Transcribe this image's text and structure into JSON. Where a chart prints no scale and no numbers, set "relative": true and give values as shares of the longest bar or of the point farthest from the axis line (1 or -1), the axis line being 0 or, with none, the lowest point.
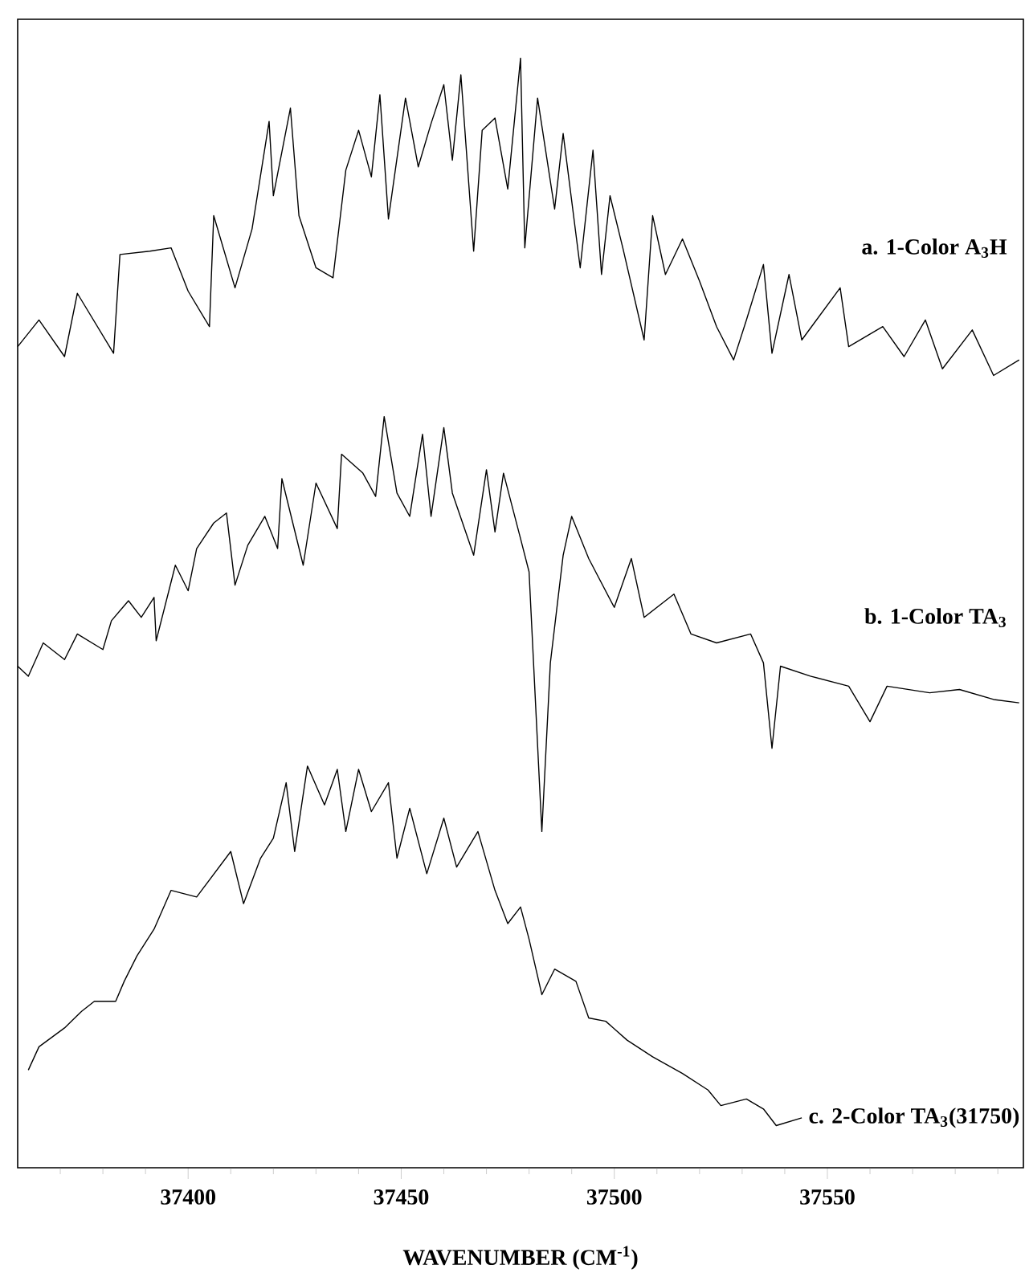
{
  "chart_data": {
    "type": "line",
    "relative": true,
    "xlabel": "WAVENUMBER (CM$^{-1}$)",
    "xlim": [
      37360,
      37596
    ],
    "tick_labels": "x",
    "xticks": [
      {
        "value": 37370,
        "label": null
      },
      {
        "value": 37380,
        "label": null
      },
      {
        "value": 37390,
        "label": null
      },
      37400,
      {
        "value": 37410,
        "label": null
      },
      {
        "value": 37420,
        "label": null
      },
      {
        "value": 37430,
        "label": null
      },
      {
        "value": 37440,
        "label": null
      },
      37450,
      {
        "value": 37460,
        "label": null
      },
      {
        "value": 37470,
        "label": null
      },
      {
        "value": 37480,
        "label": null
      },
      {
        "value": 37490,
        "label": null
      },
      37500,
      {
        "value": 37510,
        "label": null
      },
      {
        "value": 37520,
        "label": null
      },
      {
        "value": 37530,
        "label": null
      },
      {
        "value": 37540,
        "label": null
      },
      37550,
      {
        "value": 37560,
        "label": null
      },
      {
        "value": 37570,
        "label": null
      },
      {
        "value": 37580,
        "label": null
      },
      {
        "value": 37590,
        "label": null
      }
    ],
    "series": [
      {
        "name": "a.  1-Color  A$_{3}$H",
        "color": "#000000",
        "x": [
          37360,
          37365,
          37371,
          37374,
          37382.5,
          37384,
          37391,
          37396,
          37400,
          37405,
          37406,
          37411,
          37415,
          37419,
          37420,
          37424,
          37426,
          37430,
          37434,
          37437,
          37440,
          37443,
          37445,
          37447,
          37451,
          37454,
          37457,
          37460,
          37462,
          37464,
          37467,
          37469,
          37472,
          37475,
          37478,
          37479,
          37482,
          37486,
          37488,
          37492,
          37495,
          37497,
          37499,
          37502,
          37507,
          37509,
          37512,
          37516,
          37520,
          37524,
          37528,
          37531,
          37535,
          37537,
          37541,
          37544,
          37553,
          37555,
          37563,
          37568,
          37573,
          37577,
          37584,
          37589,
          37595
        ],
        "values": [
          0.74,
          0.764,
          0.731,
          0.788,
          0.734,
          0.823,
          0.826,
          0.829,
          0.79,
          0.758,
          0.858,
          0.793,
          0.846,
          0.943,
          0.876,
          0.955,
          0.858,
          0.811,
          0.802,
          0.899,
          0.935,
          0.893,
          0.967,
          0.855,
          0.964,
          0.902,
          0.941,
          0.976,
          0.908,
          0.985,
          0.826,
          0.935,
          0.946,
          0.882,
          1.0,
          0.829,
          0.964,
          0.864,
          0.932,
          0.811,
          0.917,
          0.805,
          0.876,
          0.829,
          0.746,
          0.858,
          0.805,
          0.837,
          0.799,
          0.758,
          0.728,
          0.764,
          0.814,
          0.734,
          0.805,
          0.746,
          0.793,
          0.74,
          0.758,
          0.731,
          0.764,
          0.72,
          0.755,
          0.714,
          0.728
        ]
      },
      {
        "name": "b.  1-Color  TA$_{3}$",
        "color": "#000000",
        "x": [
          37360,
          37362.5,
          37366,
          37371,
          37374,
          37380,
          37382,
          37386,
          37389,
          37392,
          37392.5,
          37397,
          37400,
          37402,
          37406,
          37409,
          37411,
          37414,
          37418,
          37421,
          37422,
          37427,
          37430,
          37435,
          37436,
          37441,
          37444,
          37446,
          37449,
          37452,
          37455,
          37457,
          37460,
          37462,
          37467,
          37470,
          37472,
          37474,
          37478,
          37480,
          37483,
          37485,
          37488,
          37490,
          37494,
          37500,
          37504,
          37507,
          37514,
          37518,
          37524,
          37532,
          37535,
          37537,
          37539,
          37546,
          37555,
          37560,
          37564,
          37574,
          37581,
          37589,
          37595
        ],
        "values": [
          0.452,
          0.443,
          0.473,
          0.458,
          0.481,
          0.467,
          0.493,
          0.511,
          0.496,
          0.514,
          0.475,
          0.543,
          0.52,
          0.558,
          0.581,
          0.59,
          0.525,
          0.561,
          0.587,
          0.558,
          0.621,
          0.543,
          0.617,
          0.576,
          0.643,
          0.626,
          0.605,
          0.677,
          0.608,
          0.587,
          0.661,
          0.587,
          0.667,
          0.608,
          0.552,
          0.629,
          0.573,
          0.626,
          0.567,
          0.537,
          0.303,
          0.455,
          0.552,
          0.587,
          0.549,
          0.505,
          0.549,
          0.496,
          0.517,
          0.481,
          0.473,
          0.481,
          0.455,
          0.378,
          0.452,
          0.443,
          0.434,
          0.402,
          0.434,
          0.428,
          0.431,
          0.422,
          0.419
        ]
      },
      {
        "name": "c.  2-Color  TA$_{3}$(31750)",
        "color": "#000000",
        "x": [
          37362.5,
          37365,
          37371,
          37375,
          37378,
          37383,
          37385,
          37388,
          37392,
          37396,
          37402,
          37410,
          37413,
          37417,
          37420,
          37423,
          37425,
          37428,
          37432,
          37435,
          37437,
          37440,
          37443,
          37447,
          37449,
          37452,
          37456,
          37460,
          37463,
          37468,
          37472,
          37475,
          37478,
          37480,
          37483,
          37486,
          37491,
          37494,
          37498,
          37503,
          37509,
          37516,
          37522,
          37525,
          37531,
          37535,
          37538,
          37544
        ],
        "values": [
          0.088,
          0.109,
          0.126,
          0.141,
          0.15,
          0.15,
          0.168,
          0.191,
          0.215,
          0.25,
          0.244,
          0.285,
          0.238,
          0.279,
          0.297,
          0.347,
          0.285,
          0.362,
          0.327,
          0.359,
          0.303,
          0.359,
          0.321,
          0.347,
          0.279,
          0.324,
          0.265,
          0.315,
          0.271,
          0.303,
          0.25,
          0.22,
          0.235,
          0.206,
          0.156,
          0.179,
          0.168,
          0.135,
          0.132,
          0.115,
          0.1,
          0.085,
          0.07,
          0.056,
          0.062,
          0.053,
          0.038,
          0.045
        ]
      }
    ]
  }
}
